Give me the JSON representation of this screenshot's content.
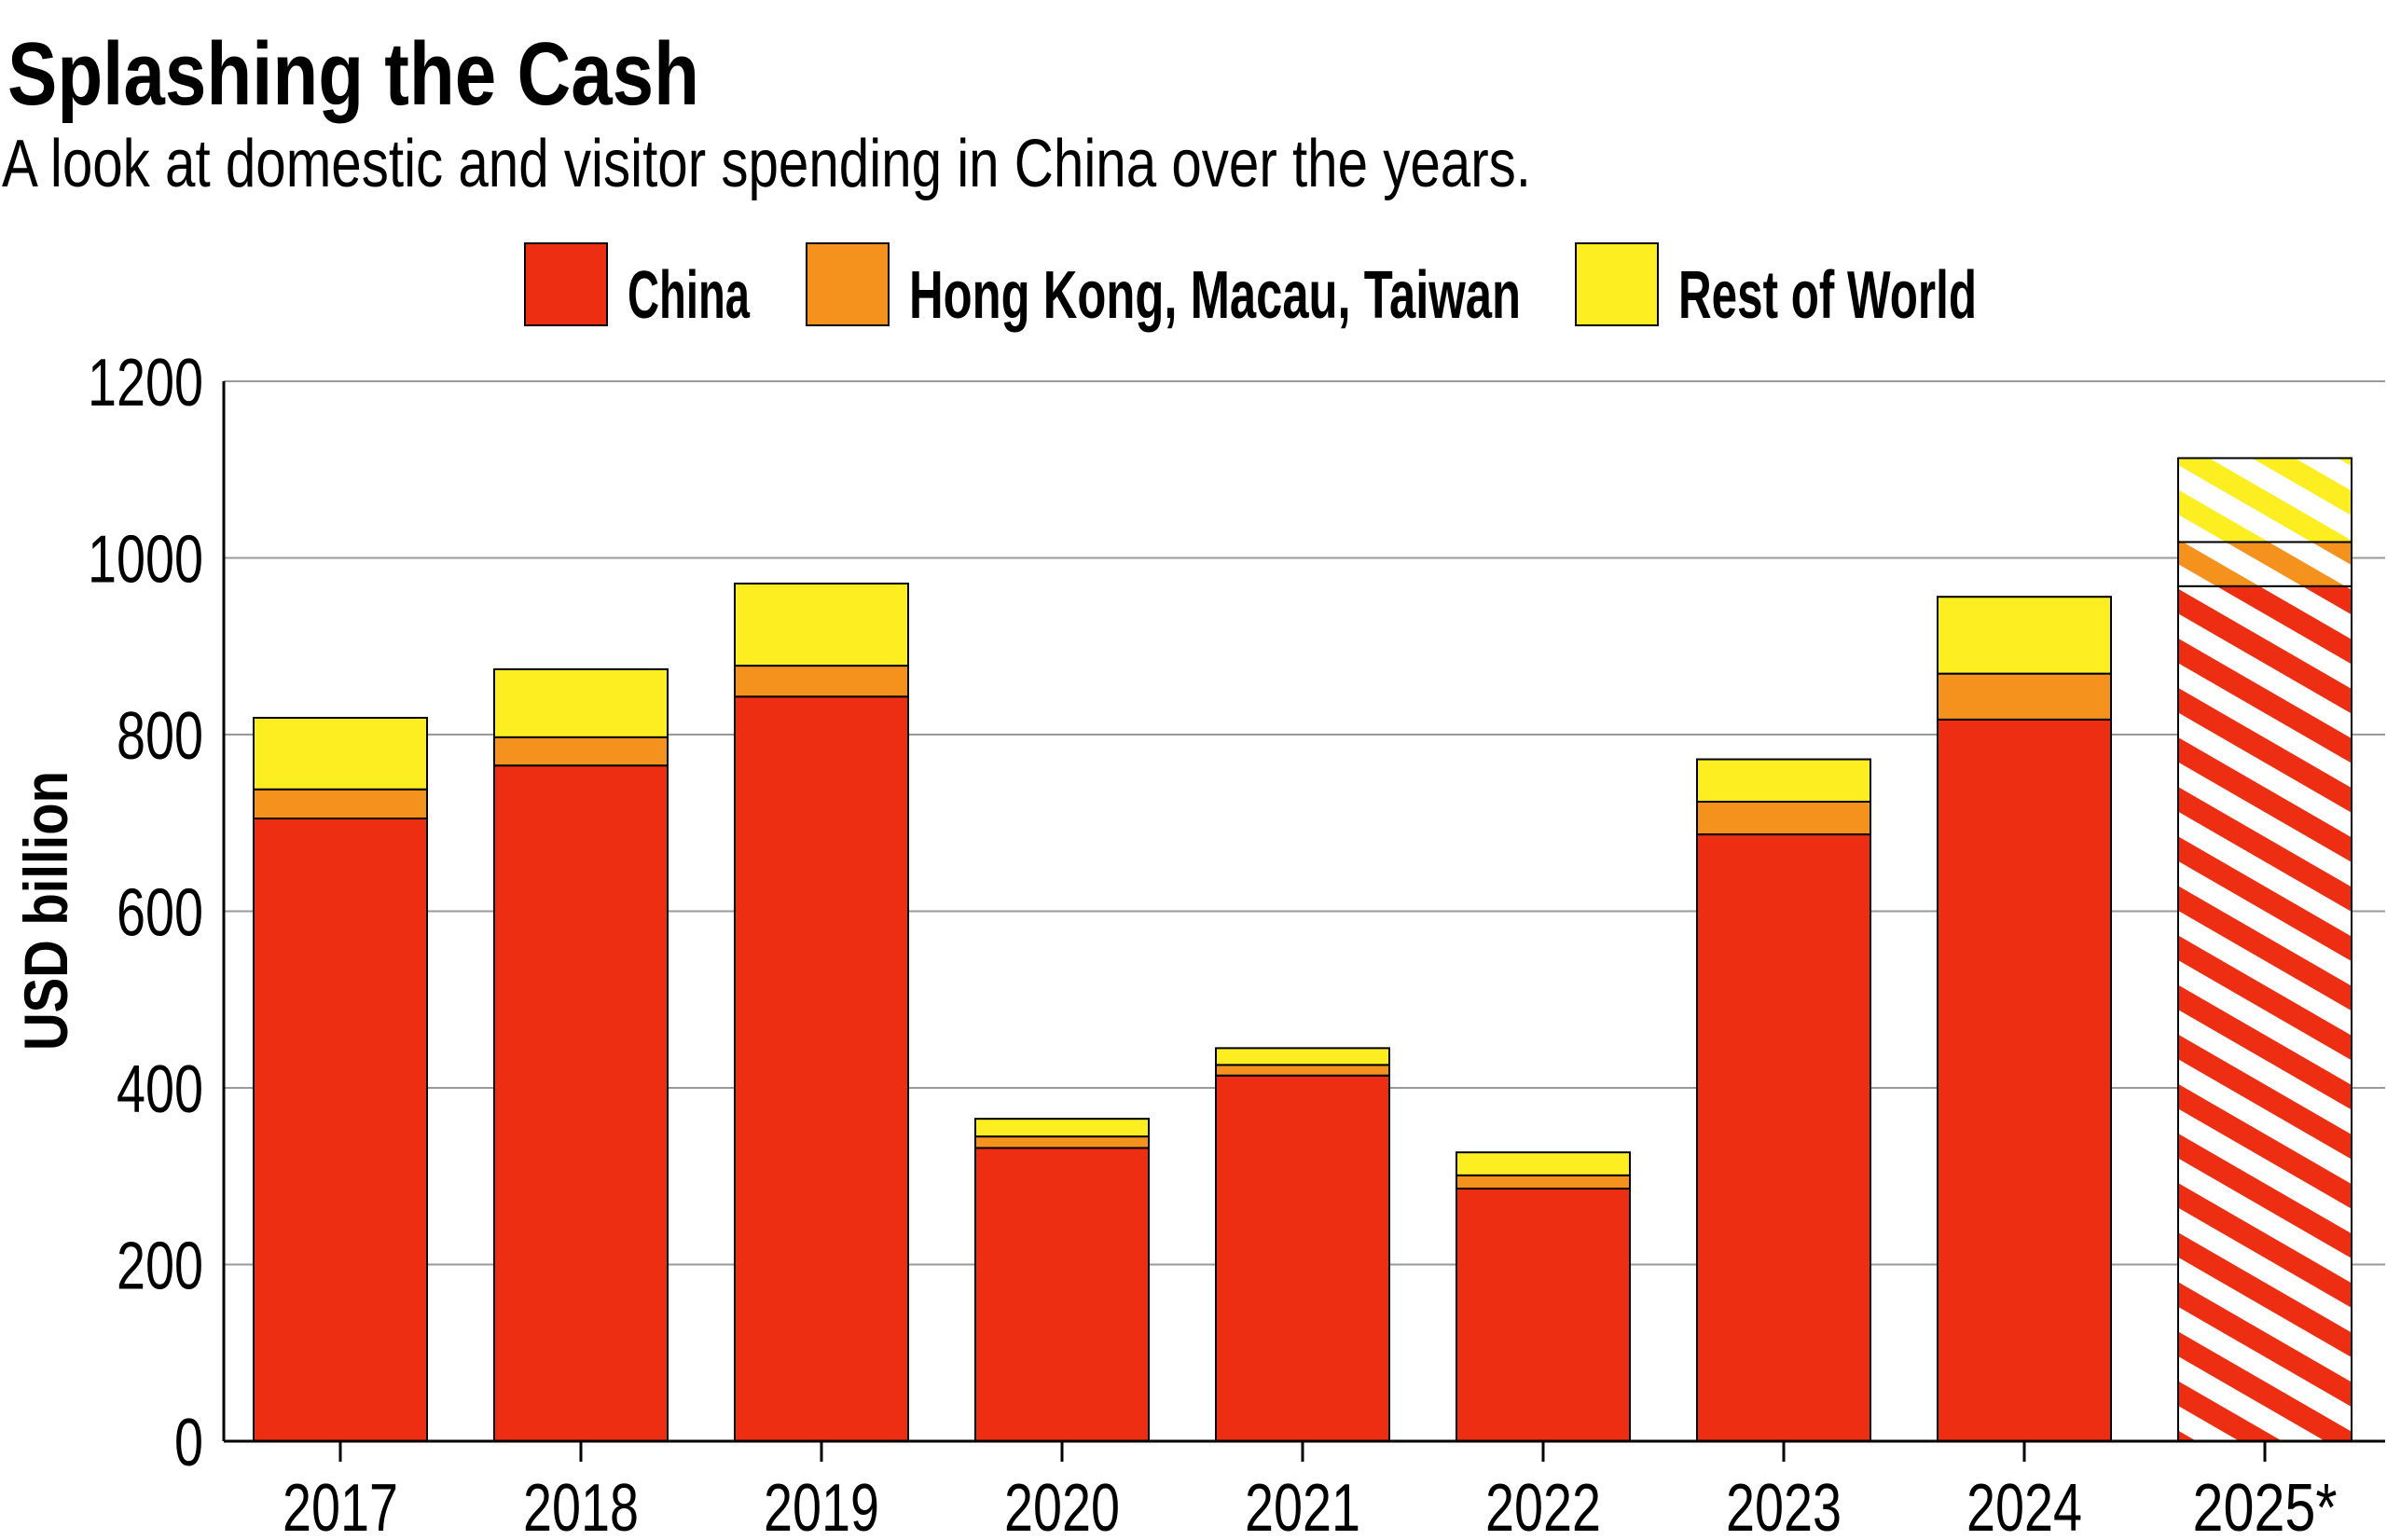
{
  "chart_data": {
    "type": "bar",
    "stacked": true,
    "title": "Splashing the Cash",
    "subtitle": "A look at domestic and visitor spending in China over the years.",
    "xlabel": "",
    "ylabel": "USD billion",
    "ylim": [
      0,
      1200
    ],
    "yticks": [
      "0",
      "200",
      "400",
      "600",
      "800",
      "1000",
      "1200"
    ],
    "grid": true,
    "legend_position": "top",
    "categories": [
      "2017",
      "2018",
      "2019",
      "2020",
      "2021",
      "2022",
      "2023",
      "2024",
      "2025*"
    ],
    "projected_categories": [
      "2025*"
    ],
    "series": [
      {
        "name": "China",
        "color": "#ee2e12",
        "values": [
          705,
          765,
          843,
          332,
          414,
          286,
          687,
          817,
          968
        ]
      },
      {
        "name": "Hong Kong, Macau, Taiwan",
        "color": "#f5921e",
        "values": [
          33,
          32,
          35,
          13,
          12,
          15,
          37,
          52,
          50
        ]
      },
      {
        "name": "Rest of World",
        "color": "#fcee21",
        "values": [
          81,
          77,
          93,
          20,
          19,
          26,
          48,
          87,
          95
        ]
      }
    ]
  }
}
